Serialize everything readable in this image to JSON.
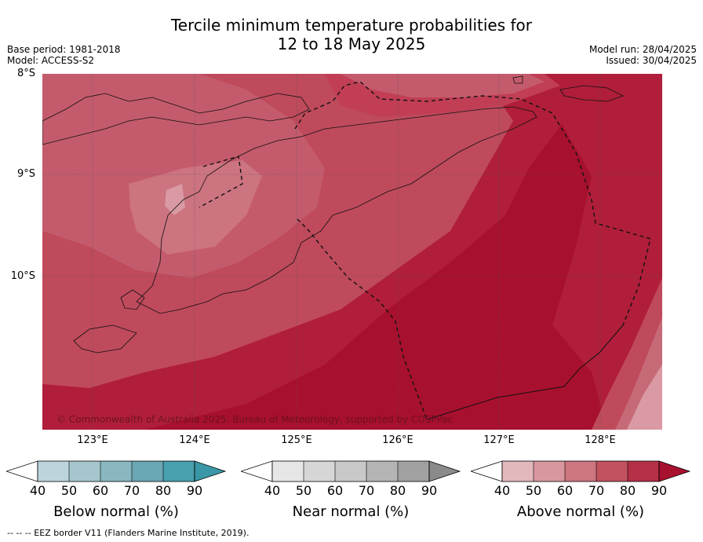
{
  "header": {
    "title_line1": "Tercile minimum temperature probabilities for",
    "title_line2": "12 to 18 May 2025",
    "base_period": "Base period: 1981-2018",
    "model": "Model: ACCESS-S2",
    "model_run": "Model run: 28/04/2025",
    "issued": "Issued: 30/04/2025"
  },
  "map": {
    "lat_labels": [
      "8°S",
      "9°S",
      "10°S"
    ],
    "lon_labels": [
      "123°E",
      "124°E",
      "125°E",
      "126°E",
      "127°E",
      "128°E"
    ],
    "lat_range": [
      -11.5,
      -8.0
    ],
    "lon_range": [
      122.5,
      128.6
    ],
    "gridlines": true,
    "copyright": "© Commonwealth of Australia 2025. Bureau of Meteorology, supported by COSPPac",
    "dominant_category": "Above normal",
    "colors": {
      "above_50": "#d99aa3",
      "above_60": "#c66a78",
      "above_70": "#bf4a5c",
      "above_80": "#b01e3b",
      "above_90": "#a8102f"
    }
  },
  "colorbars": [
    {
      "title": "Below normal (%)",
      "ticks": [
        "40",
        "50",
        "60",
        "70",
        "80",
        "90"
      ],
      "colors": [
        "#bcd5dc",
        "#a5c6cd",
        "#89b6c1",
        "#6aa6b4",
        "#489fae",
        "#3a97a8"
      ]
    },
    {
      "title": "Near normal (%)",
      "ticks": [
        "40",
        "50",
        "60",
        "70",
        "80",
        "90"
      ],
      "colors": [
        "#e6e6e6",
        "#d6d6d6",
        "#c8c8c8",
        "#b4b4b4",
        "#a1a1a1",
        "#8a8a8a"
      ]
    },
    {
      "title": "Above normal (%)",
      "ticks": [
        "40",
        "50",
        "60",
        "70",
        "80",
        "90"
      ],
      "colors": [
        "#e3b8bd",
        "#d8979f",
        "#cc7680",
        "#c2525f",
        "#b52f47",
        "#a8102f"
      ]
    }
  ],
  "footer": {
    "legend_text": "--  --  -- EEZ border V11 (Flanders Marine Institute, 2019)."
  }
}
